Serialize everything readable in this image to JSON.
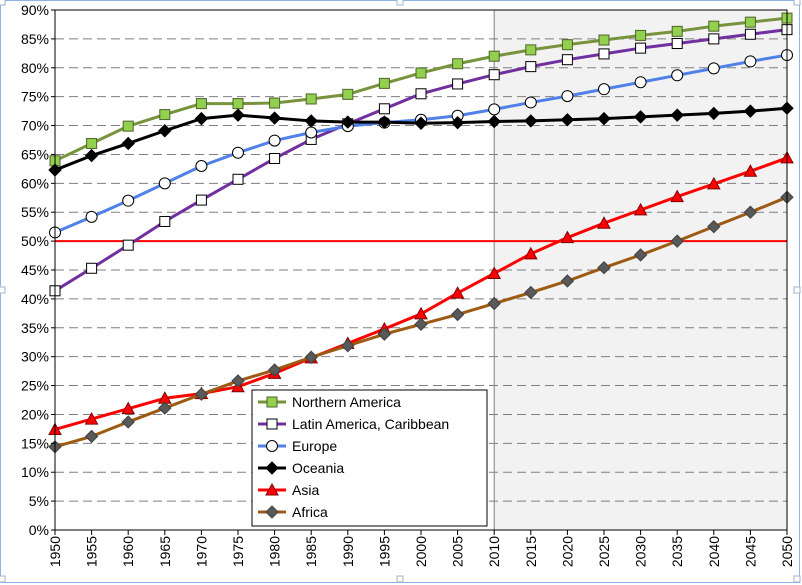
{
  "chart_data": {
    "type": "line",
    "x": [
      1950,
      1955,
      1960,
      1965,
      1970,
      1975,
      1980,
      1985,
      1990,
      1995,
      2000,
      2005,
      2010,
      2015,
      2020,
      2025,
      2030,
      2035,
      2040,
      2045,
      2050
    ],
    "x_tick_labels": [
      "1950",
      "1955",
      "1960",
      "1965",
      "1970",
      "1975",
      "1980",
      "1985",
      "1990",
      "1995",
      "2000",
      "2005",
      "2010",
      "2015",
      "2020",
      "2025",
      "2030",
      "2035",
      "2040",
      "2045",
      "2050"
    ],
    "y_tick_labels": [
      "0%",
      "5%",
      "10%",
      "15%",
      "20%",
      "25%",
      "30%",
      "35%",
      "40%",
      "45%",
      "50%",
      "55%",
      "60%",
      "65%",
      "70%",
      "75%",
      "80%",
      "85%",
      "90%"
    ],
    "ylim": [
      0,
      90
    ],
    "xlim": [
      1950,
      2050
    ],
    "grid": "horizontal dashed",
    "projection_shading_from": 2010,
    "reference_line": {
      "y": 50,
      "color": "#ff0000"
    },
    "legend_position": "bottom-center",
    "series": [
      {
        "name": "Northern America",
        "color": "#77933c",
        "marker": "square-filled",
        "marker_fill": "#92d050",
        "marker_stroke": "#4f6228",
        "values": [
          63.9,
          66.9,
          69.9,
          71.9,
          73.8,
          73.8,
          73.9,
          74.6,
          75.4,
          77.3,
          79.1,
          80.7,
          82.0,
          83.1,
          84.0,
          84.8,
          85.6,
          86.3,
          87.2,
          87.9,
          88.6
        ]
      },
      {
        "name": "Latin America, Caribbean",
        "color": "#7030a0",
        "marker": "square-open",
        "marker_fill": "#ffffff",
        "marker_stroke": "#000000",
        "values": [
          41.4,
          45.3,
          49.3,
          53.4,
          57.1,
          60.7,
          64.3,
          67.6,
          70.3,
          72.9,
          75.5,
          77.2,
          78.8,
          80.2,
          81.4,
          82.4,
          83.4,
          84.2,
          85.0,
          85.8,
          86.6
        ]
      },
      {
        "name": "Europe",
        "color": "#4f81e8",
        "marker": "circle-open",
        "marker_fill": "#ffffff",
        "marker_stroke": "#000000",
        "values": [
          51.5,
          54.2,
          57.0,
          60.0,
          63.0,
          65.3,
          67.4,
          68.8,
          69.9,
          70.5,
          71.0,
          71.7,
          72.8,
          74.0,
          75.1,
          76.3,
          77.5,
          78.7,
          79.9,
          81.1,
          82.2
        ]
      },
      {
        "name": "Oceania",
        "color": "#000000",
        "marker": "diamond-filled",
        "marker_fill": "#000000",
        "marker_stroke": "#000000",
        "values": [
          62.3,
          64.8,
          66.9,
          69.1,
          71.2,
          71.8,
          71.3,
          70.8,
          70.6,
          70.6,
          70.4,
          70.5,
          70.7,
          70.8,
          71.0,
          71.2,
          71.5,
          71.8,
          72.1,
          72.5,
          73.0
        ]
      },
      {
        "name": "Asia",
        "color": "#ff0000",
        "marker": "triangle-filled",
        "marker_fill": "#ff0000",
        "marker_stroke": "#7f0000",
        "values": [
          17.4,
          19.2,
          21.0,
          22.8,
          23.6,
          24.8,
          27.1,
          29.8,
          32.3,
          34.8,
          37.4,
          41.0,
          44.4,
          47.8,
          50.6,
          53.1,
          55.4,
          57.7,
          59.9,
          62.1,
          64.4
        ]
      },
      {
        "name": "Africa",
        "color": "#9c5a12",
        "marker": "diamond-filled",
        "marker_fill": "#595959",
        "marker_stroke": "#404040",
        "values": [
          14.4,
          16.2,
          18.7,
          21.1,
          23.5,
          25.8,
          27.7,
          29.9,
          31.9,
          33.9,
          35.6,
          37.3,
          39.2,
          41.1,
          43.1,
          45.4,
          47.6,
          50.0,
          52.5,
          55.0,
          57.6
        ]
      }
    ]
  }
}
